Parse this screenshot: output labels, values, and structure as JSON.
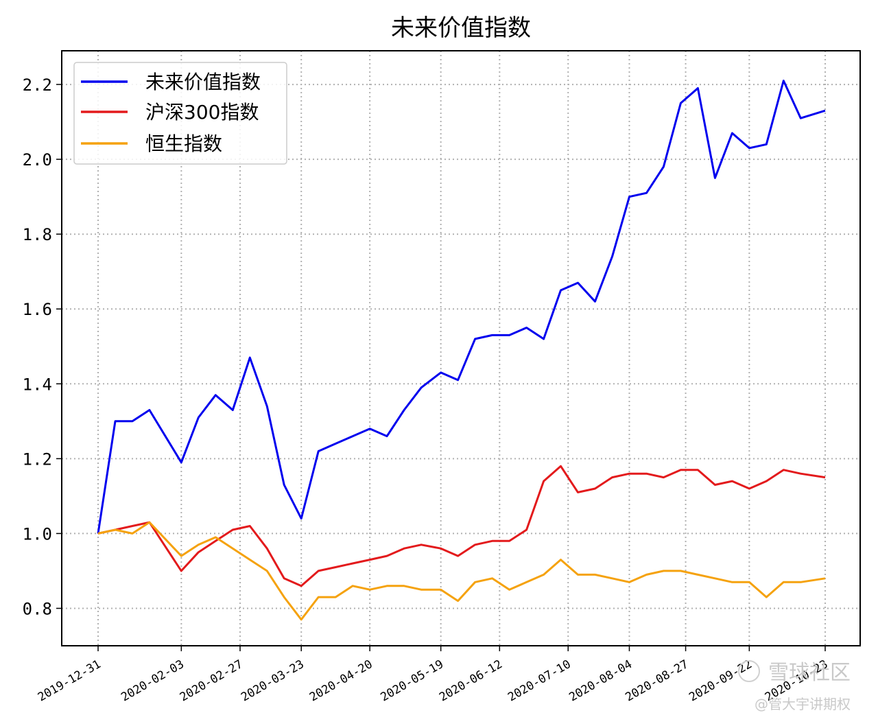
{
  "chart_data": {
    "type": "line",
    "title": "未来价值指数",
    "xlabel": "",
    "ylabel": "",
    "x_ticks": [
      "2019-12-31",
      "2020-02-03",
      "2020-02-27",
      "2020-03-23",
      "2020-04-20",
      "2020-05-19",
      "2020-06-12",
      "2020-07-10",
      "2020-08-04",
      "2020-08-27",
      "2020-09-22",
      "2020-10-23"
    ],
    "y_ticks": [
      "0.8",
      "1.0",
      "1.2",
      "1.4",
      "1.6",
      "1.8",
      "2.0",
      "2.2"
    ],
    "ylim": [
      0.7,
      2.29
    ],
    "grid": true,
    "legend_position": "top-left",
    "x": [
      "2019-12-31",
      "2020-01-07",
      "2020-01-14",
      "2020-01-21",
      "2020-02-03",
      "2020-02-10",
      "2020-02-17",
      "2020-02-24",
      "2020-03-02",
      "2020-03-09",
      "2020-03-16",
      "2020-03-23",
      "2020-03-30",
      "2020-04-06",
      "2020-04-13",
      "2020-04-20",
      "2020-04-27",
      "2020-05-04",
      "2020-05-11",
      "2020-05-19",
      "2020-05-26",
      "2020-06-02",
      "2020-06-09",
      "2020-06-16",
      "2020-06-23",
      "2020-06-30",
      "2020-07-07",
      "2020-07-14",
      "2020-07-21",
      "2020-07-28",
      "2020-08-04",
      "2020-08-11",
      "2020-08-18",
      "2020-08-25",
      "2020-09-01",
      "2020-09-08",
      "2020-09-15",
      "2020-09-22",
      "2020-09-29",
      "2020-10-06",
      "2020-10-13",
      "2020-10-23"
    ],
    "series": [
      {
        "name": "未来价值指数",
        "color": "#0000ee",
        "values": [
          1.0,
          1.3,
          1.3,
          1.33,
          1.19,
          1.31,
          1.37,
          1.33,
          1.47,
          1.34,
          1.13,
          1.04,
          1.22,
          1.24,
          1.26,
          1.28,
          1.26,
          1.33,
          1.39,
          1.43,
          1.41,
          1.52,
          1.53,
          1.53,
          1.55,
          1.52,
          1.65,
          1.67,
          1.62,
          1.74,
          1.9,
          1.91,
          1.98,
          2.15,
          2.19,
          1.95,
          2.07,
          2.03,
          2.04,
          2.21,
          2.11,
          2.13
        ]
      },
      {
        "name": "沪深300指数",
        "color": "#e31a1c",
        "values": [
          1.0,
          1.01,
          1.02,
          1.03,
          0.9,
          0.95,
          0.98,
          1.01,
          1.02,
          0.96,
          0.88,
          0.86,
          0.9,
          0.91,
          0.92,
          0.93,
          0.94,
          0.96,
          0.97,
          0.96,
          0.94,
          0.97,
          0.98,
          0.98,
          1.01,
          1.14,
          1.18,
          1.11,
          1.12,
          1.15,
          1.16,
          1.16,
          1.15,
          1.17,
          1.17,
          1.13,
          1.14,
          1.12,
          1.14,
          1.17,
          1.16,
          1.15
        ]
      },
      {
        "name": "恒生指数",
        "color": "#f5a20e",
        "values": [
          1.0,
          1.01,
          1.0,
          1.03,
          0.94,
          0.97,
          0.99,
          0.96,
          0.93,
          0.9,
          0.83,
          0.77,
          0.83,
          0.83,
          0.86,
          0.85,
          0.86,
          0.86,
          0.85,
          0.85,
          0.82,
          0.87,
          0.88,
          0.85,
          0.87,
          0.89,
          0.93,
          0.89,
          0.89,
          0.88,
          0.87,
          0.89,
          0.9,
          0.9,
          0.89,
          0.88,
          0.87,
          0.87,
          0.83,
          0.87,
          0.87,
          0.88
        ]
      }
    ]
  },
  "watermark": {
    "brand": "雪球社区",
    "handle": "@管大宇讲期权"
  }
}
